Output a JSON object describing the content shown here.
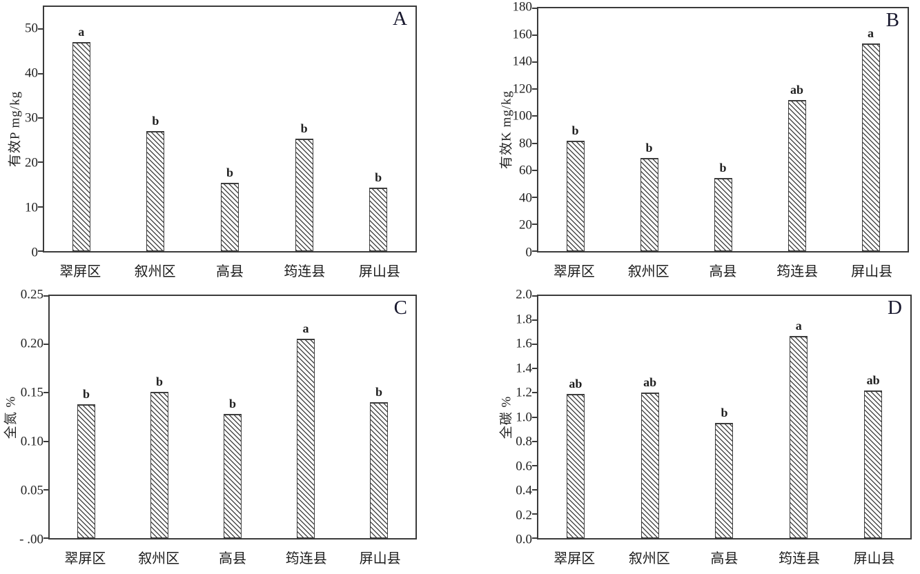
{
  "figure": {
    "description": "Four-panel hatched bar chart figure comparing soil nutrients across five counties",
    "frame_color": "#3a3a3a",
    "hatch_color": "#4a4a4a",
    "text_color": "#1a1a1a",
    "panel_letters": [
      "A",
      "B",
      "C",
      "D"
    ]
  },
  "chart_data": [
    {
      "id": "A",
      "type": "bar",
      "panel_label": "A",
      "title": "",
      "ylabel": "有效P mg/kg",
      "xlabel": "",
      "categories": [
        "翠屏区",
        "叙州区",
        "高县",
        "筠连县",
        "屏山县"
      ],
      "values": [
        47.1,
        27.0,
        15.4,
        25.4,
        14.3
      ],
      "sig_letters": [
        "a",
        "b",
        "b",
        "b",
        "b"
      ],
      "ylim": [
        0,
        55
      ],
      "yticks": [
        0,
        10,
        20,
        30,
        40,
        50
      ],
      "ytick_labels": [
        "0",
        "10",
        "20",
        "30",
        "40",
        "50"
      ],
      "grid": false,
      "legend": null,
      "bar_style": "diagonal-hatch"
    },
    {
      "id": "B",
      "type": "bar",
      "panel_label": "B",
      "title": "",
      "ylabel": "有效K mg/kg",
      "xlabel": "",
      "categories": [
        "翠屏区",
        "叙州区",
        "高县",
        "筠连县",
        "屏山县"
      ],
      "values": [
        82,
        69,
        54,
        112,
        154
      ],
      "sig_letters": [
        "b",
        "b",
        "b",
        "ab",
        "a"
      ],
      "ylim": [
        0,
        180
      ],
      "yticks": [
        0,
        20,
        40,
        60,
        80,
        100,
        120,
        140,
        160,
        180
      ],
      "ytick_labels": [
        "0",
        "20",
        "40",
        "60",
        "80",
        "100",
        "120",
        "140",
        "160",
        "180"
      ],
      "grid": false,
      "legend": null,
      "bar_style": "diagonal-hatch"
    },
    {
      "id": "C",
      "type": "bar",
      "panel_label": "C",
      "title": "",
      "ylabel": "全氮 %",
      "xlabel": "",
      "categories": [
        "翠屏区",
        "叙州区",
        "高县",
        "筠连县",
        "屏山县"
      ],
      "values": [
        0.138,
        0.151,
        0.128,
        0.206,
        0.14
      ],
      "sig_letters": [
        "b",
        "b",
        "b",
        "a",
        "b"
      ],
      "ylim": [
        0,
        0.25
      ],
      "yticks": [
        0,
        0.05,
        0.1,
        0.15,
        0.2,
        0.25
      ],
      "ytick_labels": [
        "- .00",
        "0.05",
        "0.10",
        "0.15",
        "0.20",
        "0.25"
      ],
      "grid": false,
      "legend": null,
      "bar_style": "diagonal-hatch"
    },
    {
      "id": "D",
      "type": "bar",
      "panel_label": "D",
      "title": "",
      "ylabel": "全碳 %",
      "xlabel": "",
      "categories": [
        "翠屏区",
        "叙州区",
        "高县",
        "筠连县",
        "屏山县"
      ],
      "values": [
        1.19,
        1.2,
        0.95,
        1.67,
        1.22
      ],
      "sig_letters": [
        "ab",
        "ab",
        "b",
        "a",
        "ab"
      ],
      "ylim": [
        0,
        2.0
      ],
      "yticks": [
        0.0,
        0.2,
        0.4,
        0.6,
        0.8,
        1.0,
        1.2,
        1.4,
        1.6,
        1.8,
        2.0
      ],
      "ytick_labels": [
        "0.0",
        "0.2",
        "0.4",
        "0.6",
        "0.8",
        "1.0",
        "1.2",
        "1.4",
        "1.6",
        "1.8",
        "2.0"
      ],
      "grid": false,
      "legend": null,
      "bar_style": "diagonal-hatch"
    }
  ]
}
